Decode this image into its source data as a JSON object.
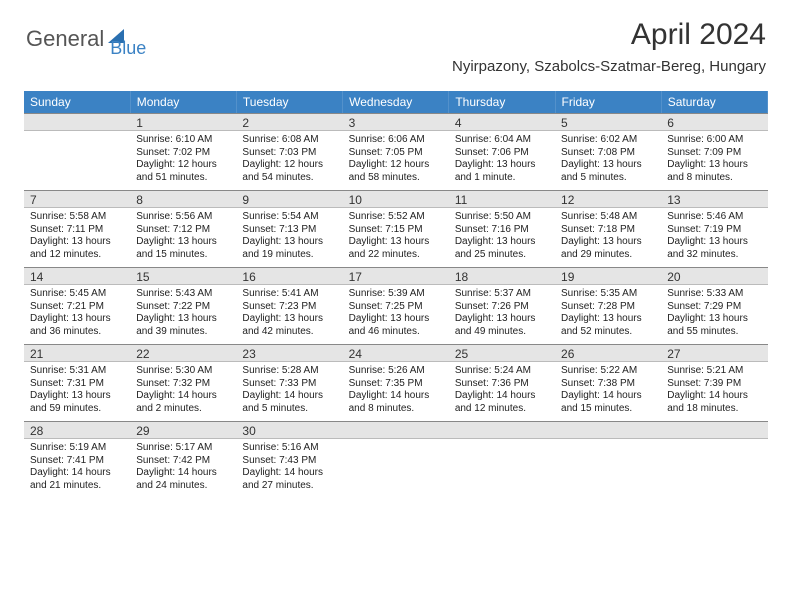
{
  "logo": {
    "text1": "General",
    "text2": "Blue"
  },
  "title": "April 2024",
  "location": "Nyirpazony, Szabolcs-Szatmar-Bereg, Hungary",
  "dayHeaders": [
    "Sunday",
    "Monday",
    "Tuesday",
    "Wednesday",
    "Thursday",
    "Friday",
    "Saturday"
  ],
  "colors": {
    "headerBg": "#3b82c4",
    "dayBarBg": "#e5e5e5",
    "accent": "#2a6fb0"
  },
  "weeks": [
    [
      {
        "day": "",
        "lines": []
      },
      {
        "day": "1",
        "lines": [
          "Sunrise: 6:10 AM",
          "Sunset: 7:02 PM",
          "Daylight: 12 hours",
          "and 51 minutes."
        ]
      },
      {
        "day": "2",
        "lines": [
          "Sunrise: 6:08 AM",
          "Sunset: 7:03 PM",
          "Daylight: 12 hours",
          "and 54 minutes."
        ]
      },
      {
        "day": "3",
        "lines": [
          "Sunrise: 6:06 AM",
          "Sunset: 7:05 PM",
          "Daylight: 12 hours",
          "and 58 minutes."
        ]
      },
      {
        "day": "4",
        "lines": [
          "Sunrise: 6:04 AM",
          "Sunset: 7:06 PM",
          "Daylight: 13 hours",
          "and 1 minute."
        ]
      },
      {
        "day": "5",
        "lines": [
          "Sunrise: 6:02 AM",
          "Sunset: 7:08 PM",
          "Daylight: 13 hours",
          "and 5 minutes."
        ]
      },
      {
        "day": "6",
        "lines": [
          "Sunrise: 6:00 AM",
          "Sunset: 7:09 PM",
          "Daylight: 13 hours",
          "and 8 minutes."
        ]
      }
    ],
    [
      {
        "day": "7",
        "lines": [
          "Sunrise: 5:58 AM",
          "Sunset: 7:11 PM",
          "Daylight: 13 hours",
          "and 12 minutes."
        ]
      },
      {
        "day": "8",
        "lines": [
          "Sunrise: 5:56 AM",
          "Sunset: 7:12 PM",
          "Daylight: 13 hours",
          "and 15 minutes."
        ]
      },
      {
        "day": "9",
        "lines": [
          "Sunrise: 5:54 AM",
          "Sunset: 7:13 PM",
          "Daylight: 13 hours",
          "and 19 minutes."
        ]
      },
      {
        "day": "10",
        "lines": [
          "Sunrise: 5:52 AM",
          "Sunset: 7:15 PM",
          "Daylight: 13 hours",
          "and 22 minutes."
        ]
      },
      {
        "day": "11",
        "lines": [
          "Sunrise: 5:50 AM",
          "Sunset: 7:16 PM",
          "Daylight: 13 hours",
          "and 25 minutes."
        ]
      },
      {
        "day": "12",
        "lines": [
          "Sunrise: 5:48 AM",
          "Sunset: 7:18 PM",
          "Daylight: 13 hours",
          "and 29 minutes."
        ]
      },
      {
        "day": "13",
        "lines": [
          "Sunrise: 5:46 AM",
          "Sunset: 7:19 PM",
          "Daylight: 13 hours",
          "and 32 minutes."
        ]
      }
    ],
    [
      {
        "day": "14",
        "lines": [
          "Sunrise: 5:45 AM",
          "Sunset: 7:21 PM",
          "Daylight: 13 hours",
          "and 36 minutes."
        ]
      },
      {
        "day": "15",
        "lines": [
          "Sunrise: 5:43 AM",
          "Sunset: 7:22 PM",
          "Daylight: 13 hours",
          "and 39 minutes."
        ]
      },
      {
        "day": "16",
        "lines": [
          "Sunrise: 5:41 AM",
          "Sunset: 7:23 PM",
          "Daylight: 13 hours",
          "and 42 minutes."
        ]
      },
      {
        "day": "17",
        "lines": [
          "Sunrise: 5:39 AM",
          "Sunset: 7:25 PM",
          "Daylight: 13 hours",
          "and 46 minutes."
        ]
      },
      {
        "day": "18",
        "lines": [
          "Sunrise: 5:37 AM",
          "Sunset: 7:26 PM",
          "Daylight: 13 hours",
          "and 49 minutes."
        ]
      },
      {
        "day": "19",
        "lines": [
          "Sunrise: 5:35 AM",
          "Sunset: 7:28 PM",
          "Daylight: 13 hours",
          "and 52 minutes."
        ]
      },
      {
        "day": "20",
        "lines": [
          "Sunrise: 5:33 AM",
          "Sunset: 7:29 PM",
          "Daylight: 13 hours",
          "and 55 minutes."
        ]
      }
    ],
    [
      {
        "day": "21",
        "lines": [
          "Sunrise: 5:31 AM",
          "Sunset: 7:31 PM",
          "Daylight: 13 hours",
          "and 59 minutes."
        ]
      },
      {
        "day": "22",
        "lines": [
          "Sunrise: 5:30 AM",
          "Sunset: 7:32 PM",
          "Daylight: 14 hours",
          "and 2 minutes."
        ]
      },
      {
        "day": "23",
        "lines": [
          "Sunrise: 5:28 AM",
          "Sunset: 7:33 PM",
          "Daylight: 14 hours",
          "and 5 minutes."
        ]
      },
      {
        "day": "24",
        "lines": [
          "Sunrise: 5:26 AM",
          "Sunset: 7:35 PM",
          "Daylight: 14 hours",
          "and 8 minutes."
        ]
      },
      {
        "day": "25",
        "lines": [
          "Sunrise: 5:24 AM",
          "Sunset: 7:36 PM",
          "Daylight: 14 hours",
          "and 12 minutes."
        ]
      },
      {
        "day": "26",
        "lines": [
          "Sunrise: 5:22 AM",
          "Sunset: 7:38 PM",
          "Daylight: 14 hours",
          "and 15 minutes."
        ]
      },
      {
        "day": "27",
        "lines": [
          "Sunrise: 5:21 AM",
          "Sunset: 7:39 PM",
          "Daylight: 14 hours",
          "and 18 minutes."
        ]
      }
    ],
    [
      {
        "day": "28",
        "lines": [
          "Sunrise: 5:19 AM",
          "Sunset: 7:41 PM",
          "Daylight: 14 hours",
          "and 21 minutes."
        ]
      },
      {
        "day": "29",
        "lines": [
          "Sunrise: 5:17 AM",
          "Sunset: 7:42 PM",
          "Daylight: 14 hours",
          "and 24 minutes."
        ]
      },
      {
        "day": "30",
        "lines": [
          "Sunrise: 5:16 AM",
          "Sunset: 7:43 PM",
          "Daylight: 14 hours",
          "and 27 minutes."
        ]
      },
      {
        "day": "",
        "lines": []
      },
      {
        "day": "",
        "lines": []
      },
      {
        "day": "",
        "lines": []
      },
      {
        "day": "",
        "lines": []
      }
    ]
  ]
}
